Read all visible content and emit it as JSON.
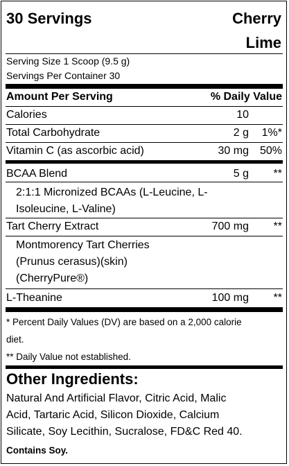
{
  "header": {
    "servings": "30 Servings",
    "flavor_line1": "Cherry",
    "flavor_line2": "Lime"
  },
  "serving_info": {
    "size": "Serving Size 1 Scoop (9.5 g)",
    "per_container": "Servings Per Container 30"
  },
  "table_header": {
    "left": "Amount Per Serving",
    "right": "% Daily Value"
  },
  "rows": {
    "calories": {
      "name": "Calories",
      "amount": "10",
      "dv": ""
    },
    "carbs": {
      "name": "Total Carbohydrate",
      "amount": "2 g",
      "dv": "1%*"
    },
    "vitc": {
      "name": "Vitamin C (as ascorbic acid)",
      "amount": "30 mg",
      "dv": "50%"
    },
    "bcaa": {
      "name": "BCAA Blend",
      "amount": "5 g",
      "dv": "**"
    },
    "bcaa_detail": [
      "2:1:1 Micronized BCAAs (L-Leucine, L-",
      "Isoleucine, L-Valine)"
    ],
    "tart": {
      "name": "Tart Cherry Extract",
      "amount": "700 mg",
      "dv": "**"
    },
    "tart_detail": [
      "Montmorency Tart Cherries",
      "(Prunus cerasus)(skin)",
      "(CherryPure®)"
    ],
    "theanine": {
      "name": "L-Theanine",
      "amount": "100 mg",
      "dv": "**"
    }
  },
  "footnotes": {
    "dv_line1": "* Percent Daily Values (DV) are based on a 2,000 calorie",
    "dv_line2": "diet.",
    "not_established": "** Daily Value not established."
  },
  "other_ingredients": {
    "heading": "Other Ingredients:",
    "lines": [
      "Natural And Artificial Flavor, Citric Acid, Malic",
      "Acid, Tartaric Acid, Silicon Dioxide, Calcium",
      "Silicate, Soy Lecithin, Sucralose, FD&C Red 40."
    ],
    "allergen": "Contains Soy."
  }
}
